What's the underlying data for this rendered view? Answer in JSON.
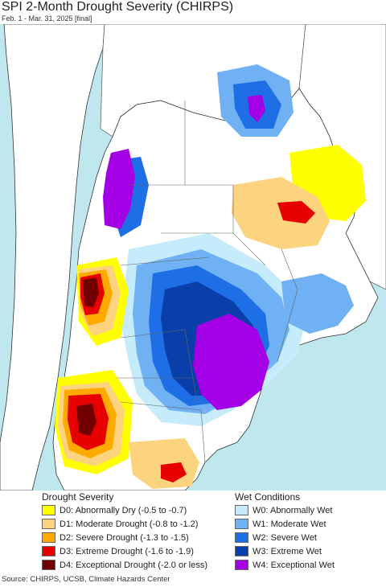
{
  "header": {
    "title": "SPI 2-Month Drought Severity (CHIRPS)",
    "subtitle": "Feb. 1 - Mar. 31, 2025 [final]"
  },
  "map": {
    "colors": {
      "ocean": "#bfe8ee",
      "land_outside": "#ffffff",
      "border": "#555555",
      "coast": "#333333"
    }
  },
  "legend": {
    "drought": {
      "title": "Drought Severity",
      "items": [
        {
          "label": "D0: Abnormally Dry (-0.5 to -0.7)",
          "color": "#ffff00"
        },
        {
          "label": "D1: Moderate Drought (-0.8 to -1.2)",
          "color": "#fcd37f"
        },
        {
          "label": "D2: Severe Drought (-1.3 to -1.5)",
          "color": "#ffaa00"
        },
        {
          "label": "D3: Extreme Drought (-1.6 to -1.9)",
          "color": "#e60000"
        },
        {
          "label": "D4: Exceptional Drought (-2.0 or less)",
          "color": "#730000"
        }
      ]
    },
    "wet": {
      "title": "Wet Conditions",
      "items": [
        {
          "label": "W0: Abnormally Wet",
          "color": "#c6ecfb"
        },
        {
          "label": "W1: Moderate Wet",
          "color": "#6fb1f2"
        },
        {
          "label": "W2: Severe Wet",
          "color": "#1e6fe6"
        },
        {
          "label": "W3: Extreme Wet",
          "color": "#0a3ea8"
        },
        {
          "label": "W4: Exceptional Wet",
          "color": "#a400e6"
        }
      ]
    }
  },
  "footer": {
    "source": "Source: CHIRPS, UCSB, Climate Hazards Center"
  }
}
